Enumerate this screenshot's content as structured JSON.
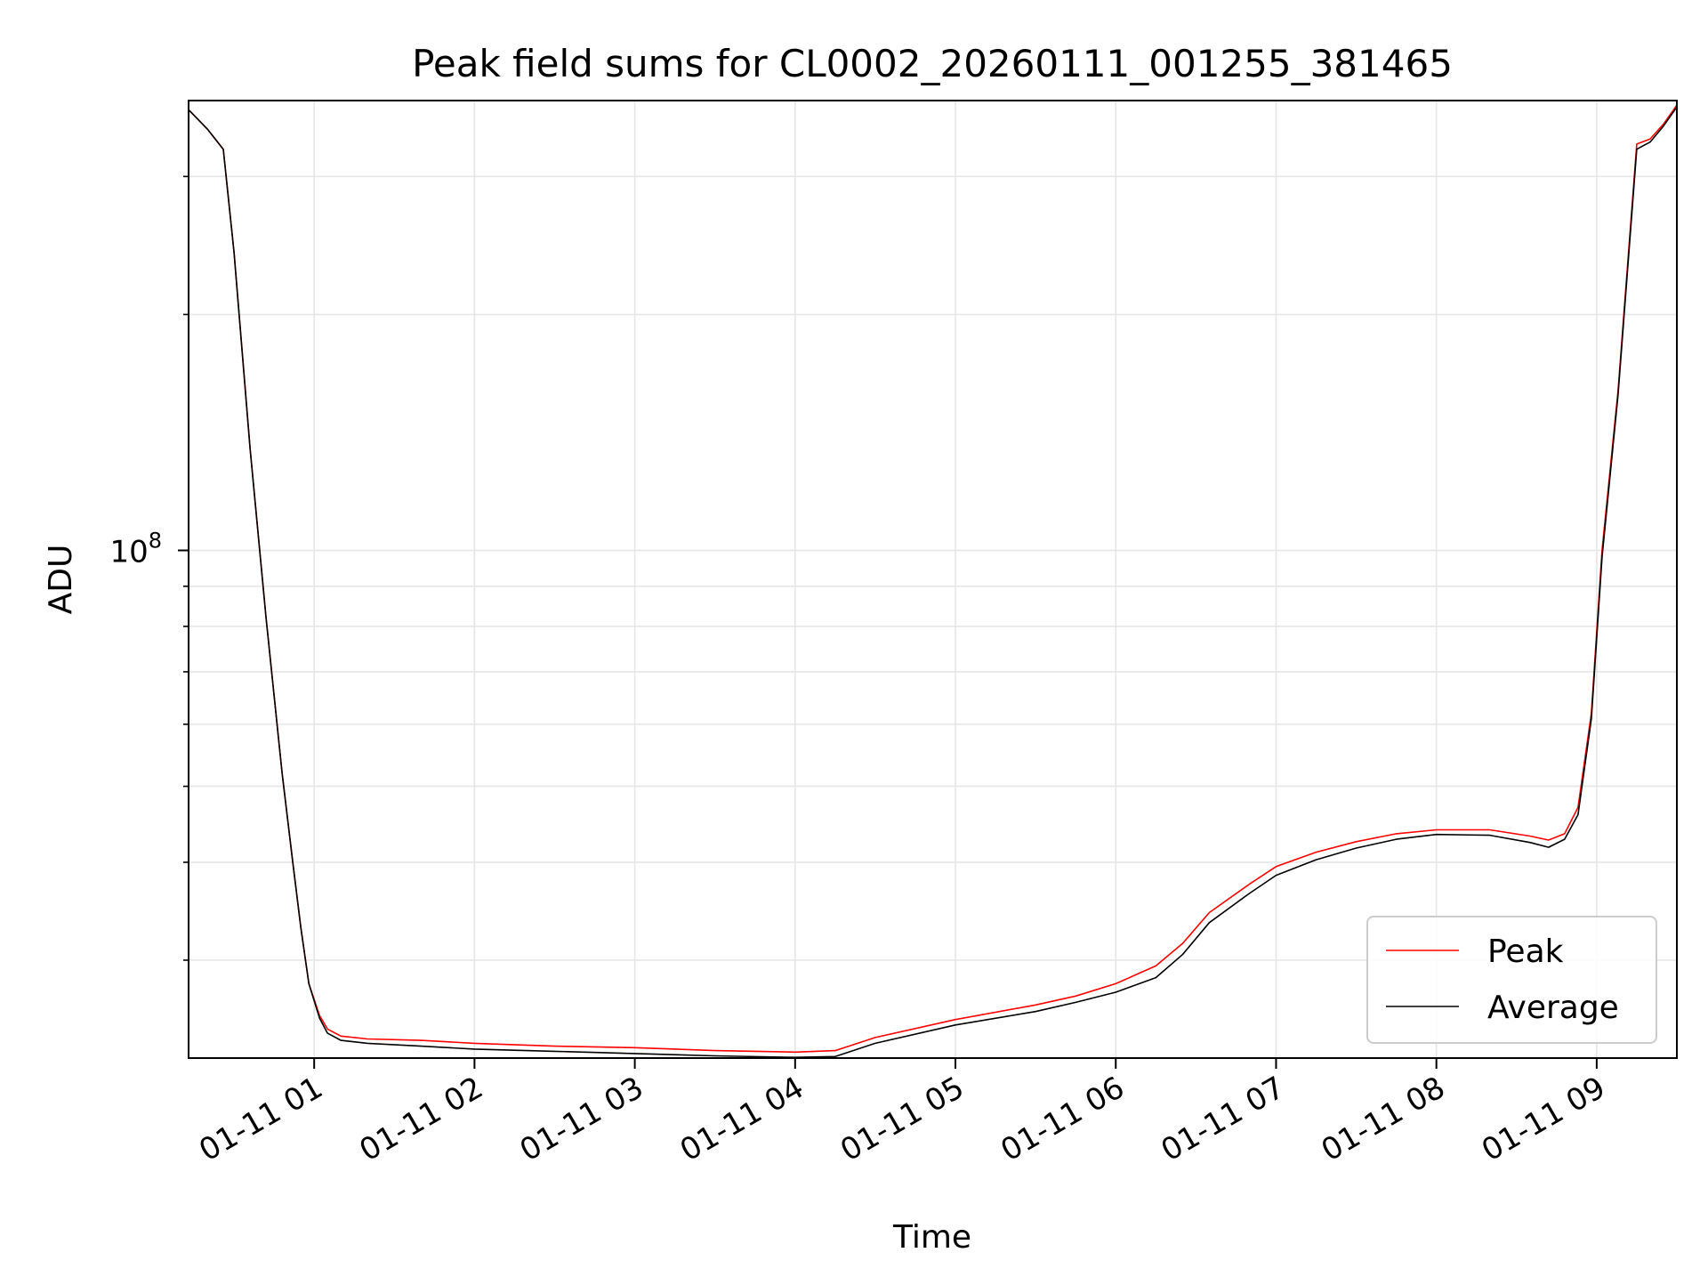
{
  "chart_data": {
    "type": "line",
    "title": "Peak field sums for CL0002_20260111_001255_381465",
    "xlabel": "Time",
    "ylabel": "ADU",
    "x_scale": "time",
    "y_scale": "log",
    "xlim": [
      "2026-01-11 00:13",
      "2026-01-11 09:30"
    ],
    "ylim": [
      22500000,
      375000000
    ],
    "x_ticks": [
      {
        "time": "2026-01-11 01:00",
        "label": "01-11 01"
      },
      {
        "time": "2026-01-11 02:00",
        "label": "01-11 02"
      },
      {
        "time": "2026-01-11 03:00",
        "label": "01-11 03"
      },
      {
        "time": "2026-01-11 04:00",
        "label": "01-11 04"
      },
      {
        "time": "2026-01-11 05:00",
        "label": "01-11 05"
      },
      {
        "time": "2026-01-11 06:00",
        "label": "01-11 06"
      },
      {
        "time": "2026-01-11 07:00",
        "label": "01-11 07"
      },
      {
        "time": "2026-01-11 08:00",
        "label": "01-11 08"
      },
      {
        "time": "2026-01-11 09:00",
        "label": "01-11 09"
      }
    ],
    "y_major_ticks": [
      {
        "value": 100000000,
        "base": "10",
        "exponent": "8"
      }
    ],
    "y_minor_ticks": [
      30000000,
      40000000,
      50000000,
      60000000,
      70000000,
      80000000,
      90000000,
      200000000,
      300000000
    ],
    "grid": true,
    "legend_position": "lower-right",
    "series": [
      {
        "name": "Peak",
        "color": "#ff0000",
        "x": [
          "2026-01-11 00:13",
          "2026-01-11 00:20",
          "2026-01-11 00:26",
          "2026-01-11 00:30",
          "2026-01-11 00:36",
          "2026-01-11 00:42",
          "2026-01-11 00:48",
          "2026-01-11 00:52",
          "2026-01-11 00:55",
          "2026-01-11 00:58",
          "2026-01-11 01:02",
          "2026-01-11 01:05",
          "2026-01-11 01:10",
          "2026-01-11 01:20",
          "2026-01-11 01:40",
          "2026-01-11 02:00",
          "2026-01-11 02:30",
          "2026-01-11 03:00",
          "2026-01-11 03:30",
          "2026-01-11 04:00",
          "2026-01-11 04:15",
          "2026-01-11 04:30",
          "2026-01-11 05:00",
          "2026-01-11 05:30",
          "2026-01-11 05:45",
          "2026-01-11 06:00",
          "2026-01-11 06:15",
          "2026-01-11 06:25",
          "2026-01-11 06:35",
          "2026-01-11 06:50",
          "2026-01-11 07:00",
          "2026-01-11 07:15",
          "2026-01-11 07:30",
          "2026-01-11 07:45",
          "2026-01-11 08:00",
          "2026-01-11 08:20",
          "2026-01-11 08:35",
          "2026-01-11 08:42",
          "2026-01-11 08:48",
          "2026-01-11 08:53",
          "2026-01-11 08:58",
          "2026-01-11 09:02",
          "2026-01-11 09:08",
          "2026-01-11 09:15",
          "2026-01-11 09:20",
          "2026-01-11 09:25",
          "2026-01-11 09:30"
        ],
        "y": [
          365000000,
          345000000,
          325000000,
          240000000,
          135000000,
          82000000,
          52000000,
          40000000,
          33000000,
          28000000,
          25500000,
          24500000,
          24000000,
          23800000,
          23700000,
          23500000,
          23300000,
          23200000,
          23000000,
          22900000,
          23000000,
          23900000,
          25200000,
          26300000,
          27000000,
          28000000,
          29500000,
          31500000,
          34500000,
          37500000,
          39500000,
          41200000,
          42500000,
          43500000,
          44000000,
          44000000,
          43200000,
          42700000,
          43500000,
          47000000,
          62000000,
          100000000,
          160000000,
          330000000,
          335000000,
          350000000,
          370000000
        ]
      },
      {
        "name": "Average",
        "color": "#000000",
        "x": [
          "2026-01-11 00:13",
          "2026-01-11 00:20",
          "2026-01-11 00:26",
          "2026-01-11 00:30",
          "2026-01-11 00:36",
          "2026-01-11 00:42",
          "2026-01-11 00:48",
          "2026-01-11 00:52",
          "2026-01-11 00:55",
          "2026-01-11 00:58",
          "2026-01-11 01:02",
          "2026-01-11 01:05",
          "2026-01-11 01:10",
          "2026-01-11 01:20",
          "2026-01-11 01:40",
          "2026-01-11 02:00",
          "2026-01-11 02:30",
          "2026-01-11 03:00",
          "2026-01-11 03:30",
          "2026-01-11 04:00",
          "2026-01-11 04:15",
          "2026-01-11 04:30",
          "2026-01-11 05:00",
          "2026-01-11 05:30",
          "2026-01-11 05:45",
          "2026-01-11 06:00",
          "2026-01-11 06:15",
          "2026-01-11 06:25",
          "2026-01-11 06:35",
          "2026-01-11 06:50",
          "2026-01-11 07:00",
          "2026-01-11 07:15",
          "2026-01-11 07:30",
          "2026-01-11 07:45",
          "2026-01-11 08:00",
          "2026-01-11 08:20",
          "2026-01-11 08:35",
          "2026-01-11 08:42",
          "2026-01-11 08:48",
          "2026-01-11 08:53",
          "2026-01-11 08:58",
          "2026-01-11 09:02",
          "2026-01-11 09:08",
          "2026-01-11 09:15",
          "2026-01-11 09:20",
          "2026-01-11 09:25",
          "2026-01-11 09:30"
        ],
        "y": [
          365000000,
          345000000,
          325000000,
          240000000,
          135000000,
          82000000,
          52000000,
          40000000,
          33000000,
          28000000,
          25300000,
          24200000,
          23700000,
          23500000,
          23300000,
          23100000,
          22950000,
          22800000,
          22650000,
          22550000,
          22600000,
          23500000,
          24800000,
          25800000,
          26500000,
          27300000,
          28500000,
          30500000,
          33500000,
          36500000,
          38500000,
          40300000,
          41700000,
          42800000,
          43400000,
          43300000,
          42400000,
          41800000,
          42800000,
          46000000,
          61000000,
          98000000,
          158000000,
          325000000,
          332000000,
          348000000,
          368000000
        ]
      }
    ]
  }
}
